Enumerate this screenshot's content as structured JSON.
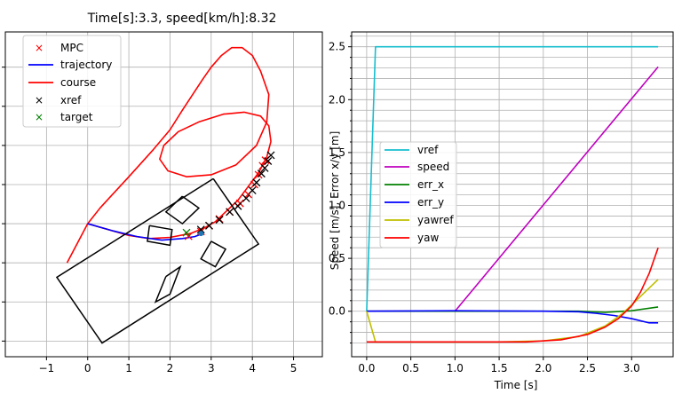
{
  "chart_data": [
    {
      "type": "line",
      "title": "Time[s]:3.3, speed[km/h]:8.32",
      "xlabel": "",
      "ylabel": "",
      "xlim": [
        -2.0,
        5.7
      ],
      "ylim": [
        -3.4,
        4.9
      ],
      "xticks": [
        -1,
        0,
        1,
        2,
        3,
        4,
        5
      ],
      "xtick_labels": [
        "−1",
        "0",
        "1",
        "2",
        "3",
        "4",
        "5"
      ],
      "yticks": [
        -3,
        -2,
        -1,
        0,
        1,
        2,
        3,
        4
      ],
      "ytick_labels": [
        "−3",
        "−2",
        "−1",
        "0",
        "1",
        "2",
        "3",
        "4"
      ],
      "grid": true,
      "legend_position": "upper-left",
      "series": [
        {
          "name": "course",
          "style": "line",
          "color": "#ff0000",
          "x": [
            -0.5,
            0.0,
            0.5,
            1.0,
            1.5,
            2.0,
            2.5,
            2.85,
            3.1,
            3.35,
            3.65,
            3.9,
            4.15,
            4.35,
            4.45,
            4.4,
            4.2,
            3.8,
            3.3,
            2.7,
            2.2,
            1.85,
            1.75,
            1.95,
            2.4,
            3.0,
            3.6,
            4.1,
            4.35,
            4.4,
            4.2,
            4.0,
            3.75,
            3.5,
            3.25,
            3.0,
            2.8,
            2.55,
            2.3,
            2.0,
            1.6,
            1.0,
            0.3,
            0.0
          ],
          "y": [
            -1.0,
            0.0,
            -0.15,
            -0.3,
            -0.38,
            -0.35,
            -0.25,
            -0.1,
            0.05,
            0.3,
            0.6,
            0.95,
            1.3,
            1.7,
            2.1,
            2.5,
            2.75,
            2.85,
            2.8,
            2.6,
            2.35,
            2.0,
            1.65,
            1.35,
            1.2,
            1.25,
            1.5,
            2.0,
            2.6,
            3.3,
            3.9,
            4.3,
            4.5,
            4.5,
            4.3,
            4.0,
            3.7,
            3.3,
            2.9,
            2.4,
            1.9,
            1.2,
            0.4,
            0.0
          ]
        },
        {
          "name": "trajectory",
          "style": "line",
          "color": "#0000ff",
          "x": [
            0.0,
            0.6,
            1.2,
            1.8,
            2.3,
            2.6,
            2.75
          ],
          "y": [
            0.0,
            -0.18,
            -0.33,
            -0.42,
            -0.38,
            -0.33,
            -0.27
          ]
        },
        {
          "name": "MPC",
          "style": "marker",
          "marker": "x",
          "color": "#ff0000",
          "x": [
            2.45,
            2.75,
            2.95,
            3.2,
            3.45,
            3.7,
            3.9,
            4.05,
            4.15,
            4.25,
            4.32
          ],
          "y": [
            -0.32,
            -0.2,
            -0.05,
            0.12,
            0.3,
            0.52,
            0.75,
            1.0,
            1.25,
            1.48,
            1.62
          ]
        },
        {
          "name": "xref",
          "style": "marker",
          "marker": "x",
          "color": "#000000",
          "x": [
            2.75,
            2.95,
            3.2,
            3.45,
            3.65,
            3.85,
            4.0,
            4.1,
            4.22,
            4.3,
            4.38,
            4.45
          ],
          "y": [
            -0.15,
            -0.05,
            0.1,
            0.3,
            0.45,
            0.65,
            0.85,
            1.05,
            1.28,
            1.42,
            1.6,
            1.75
          ]
        },
        {
          "name": "target",
          "style": "marker",
          "marker": "x",
          "color": "#008000",
          "x": [
            2.4
          ],
          "y": [
            -0.23
          ]
        }
      ],
      "legend_entries": [
        "MPC",
        "trajectory",
        "course",
        "xref",
        "target"
      ]
    },
    {
      "type": "line",
      "title": "",
      "xlabel": "Time [s]",
      "ylabel": "Speed [m/s], Error x/y [m]",
      "xlim": [
        -0.17,
        3.47
      ],
      "ylim": [
        -0.43,
        2.64
      ],
      "xticks": [
        0.0,
        0.5,
        1.0,
        1.5,
        2.0,
        2.5,
        3.0
      ],
      "xtick_labels": [
        "0.0",
        "0.5",
        "1.0",
        "1.5",
        "2.0",
        "2.5",
        "3.0"
      ],
      "yticks": [
        0.0,
        0.5,
        1.0,
        1.5,
        2.0,
        2.5
      ],
      "ytick_labels": [
        "0.0",
        "0.5",
        "1.0",
        "1.5",
        "2.0",
        "2.5"
      ],
      "minor_yticks": [
        -0.3,
        -0.2,
        -0.1,
        0.1,
        0.2,
        0.3,
        0.4,
        0.6,
        0.7,
        0.8,
        0.9,
        1.1,
        1.2,
        1.3,
        1.4,
        1.6,
        1.7,
        1.8,
        1.9,
        2.1,
        2.2,
        2.3,
        2.4,
        2.6
      ],
      "grid": true,
      "legend_position": "center-left",
      "legend_entries": [
        "vref",
        "speed",
        "err_x",
        "err_y",
        "yawref",
        "yaw"
      ],
      "series": [
        {
          "name": "vref",
          "color": "#17becf",
          "x": [
            0.0,
            0.1,
            0.1,
            3.3
          ],
          "y": [
            0.0,
            2.5,
            2.5,
            2.5
          ]
        },
        {
          "name": "speed",
          "color": "#bf00bf",
          "x": [
            0.0,
            1.0,
            3.3
          ],
          "y": [
            0.0,
            0.0,
            2.31
          ]
        },
        {
          "name": "err_x",
          "color": "#008000",
          "x": [
            0.0,
            1.5,
            2.0,
            2.4,
            2.7,
            3.0,
            3.3
          ],
          "y": [
            0.0,
            0.0,
            0.0,
            0.0,
            -0.01,
            0.005,
            0.04
          ]
        },
        {
          "name": "err_y",
          "color": "#0000ff",
          "x": [
            0.0,
            1.0,
            2.0,
            2.4,
            2.6,
            2.8,
            3.0,
            3.2,
            3.3
          ],
          "y": [
            0.0,
            0.005,
            0.0,
            -0.005,
            -0.02,
            -0.04,
            -0.07,
            -0.11,
            -0.11
          ]
        },
        {
          "name": "yawref",
          "color": "#bfbf00",
          "x": [
            0.0,
            0.1,
            1.5,
            2.0,
            2.4,
            2.7,
            2.9,
            3.1,
            3.3
          ],
          "y": [
            0.0,
            -0.29,
            -0.29,
            -0.28,
            -0.24,
            -0.14,
            -0.02,
            0.14,
            0.3
          ]
        },
        {
          "name": "yaw",
          "color": "#ff0000",
          "x": [
            0.0,
            1.0,
            1.8,
            2.2,
            2.5,
            2.7,
            2.85,
            3.0,
            3.1,
            3.2,
            3.3
          ],
          "y": [
            -0.29,
            -0.29,
            -0.29,
            -0.27,
            -0.22,
            -0.15,
            -0.07,
            0.05,
            0.18,
            0.36,
            0.6
          ]
        }
      ]
    }
  ],
  "vehicle": {
    "color": "#000000",
    "body": {
      "x": [
        3.05,
        4.15,
        0.35,
        -0.75,
        3.05
      ],
      "y": [
        1.15,
        -0.52,
        -3.05,
        -1.37,
        1.15
      ]
    },
    "wheels": [
      {
        "x": [
          2.3,
          2.7,
          2.3,
          1.9,
          2.3
        ],
        "y": [
          0.7,
          0.4,
          0.0,
          0.3,
          0.7
        ]
      },
      {
        "x": [
          1.5,
          2.05,
          2.0,
          1.45,
          1.5
        ],
        "y": [
          -0.05,
          -0.15,
          -0.55,
          -0.45,
          -0.05
        ]
      },
      {
        "x": [
          1.9,
          2.25,
          2.0,
          1.65,
          1.9
        ],
        "y": [
          -1.35,
          -1.1,
          -1.8,
          -2.0,
          -1.35
        ]
      },
      {
        "x": [
          3.0,
          3.35,
          3.1,
          2.75,
          3.0
        ],
        "y": [
          -0.45,
          -0.65,
          -1.1,
          -0.9,
          -0.45
        ]
      }
    ],
    "heading_dot": {
      "x": 2.75,
      "y": -0.25,
      "color": "#1f77b4"
    }
  }
}
